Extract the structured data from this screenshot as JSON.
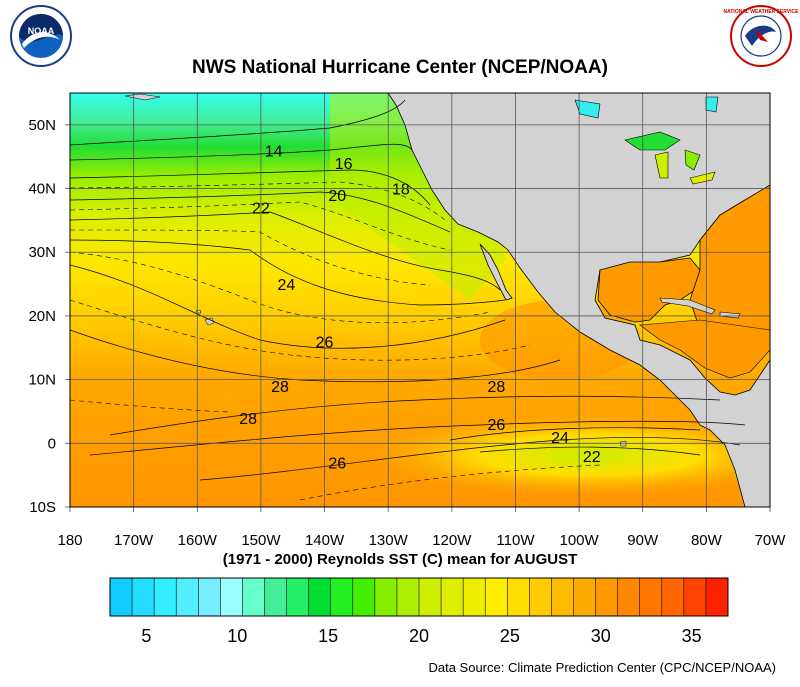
{
  "title": "NWS National Hurricane Center (NCEP/NOAA)",
  "subtitle": "(1971 - 2000) Reynolds SST (C) mean for AUGUST",
  "source": "Data Source: Climate Prediction Center (CPC/NCEP/NOAA)",
  "logos": {
    "noaa": "NOAA",
    "nws": "NATIONAL WEATHER SERVICE"
  },
  "colors": {
    "land": "#d2d2d2",
    "water_warm": "#ff9900",
    "water_mid": "#ffdd00",
    "water_cool": "#00dd33",
    "water_cold": "#33ffff"
  },
  "map": {
    "lon_range": [
      -180,
      -70
    ],
    "lat_range": [
      -10,
      55
    ],
    "lon_ticks": [
      "180",
      "170W",
      "160W",
      "150W",
      "140W",
      "130W",
      "120W",
      "110W",
      "100W",
      "90W",
      "80W",
      "70W"
    ],
    "lat_ticks": [
      "10S",
      "0",
      "10N",
      "20N",
      "30N",
      "40N",
      "50N"
    ],
    "contour_labels": [
      {
        "text": "14",
        "lon": -148,
        "lat": 46
      },
      {
        "text": "16",
        "lon": -137,
        "lat": 44
      },
      {
        "text": "18",
        "lon": -128,
        "lat": 40
      },
      {
        "text": "20",
        "lon": -138,
        "lat": 39
      },
      {
        "text": "22",
        "lon": -150,
        "lat": 37
      },
      {
        "text": "24",
        "lon": -146,
        "lat": 25
      },
      {
        "text": "26",
        "lon": -140,
        "lat": 16
      },
      {
        "text": "28",
        "lon": -147,
        "lat": 9
      },
      {
        "text": "28",
        "lon": -113,
        "lat": 9
      },
      {
        "text": "28",
        "lon": -152,
        "lat": 4
      },
      {
        "text": "26",
        "lon": -113,
        "lat": 3
      },
      {
        "text": "24",
        "lon": -103,
        "lat": 1
      },
      {
        "text": "26",
        "lon": -138,
        "lat": -3
      },
      {
        "text": "22",
        "lon": -98,
        "lat": -2
      }
    ]
  },
  "colorbar": {
    "colors": [
      "#11ccff",
      "#22ddff",
      "#33eeff",
      "#55eeff",
      "#77eeff",
      "#99ffff",
      "#66ffcc",
      "#44ee99",
      "#22ee66",
      "#00dd33",
      "#22ee22",
      "#44ee00",
      "#88ee00",
      "#aaf000",
      "#ccee00",
      "#ddee00",
      "#eeee00",
      "#ffee00",
      "#ffdd00",
      "#ffcc00",
      "#ffbb00",
      "#ffaa00",
      "#ff9900",
      "#ff8800",
      "#ff7700",
      "#ff6600",
      "#ff4400",
      "#ff2200"
    ],
    "labels": [
      "5",
      "10",
      "15",
      "20",
      "25",
      "30",
      "35"
    ],
    "label_values": [
      5,
      10,
      15,
      20,
      25,
      30,
      35
    ],
    "min": 3,
    "max": 37
  }
}
